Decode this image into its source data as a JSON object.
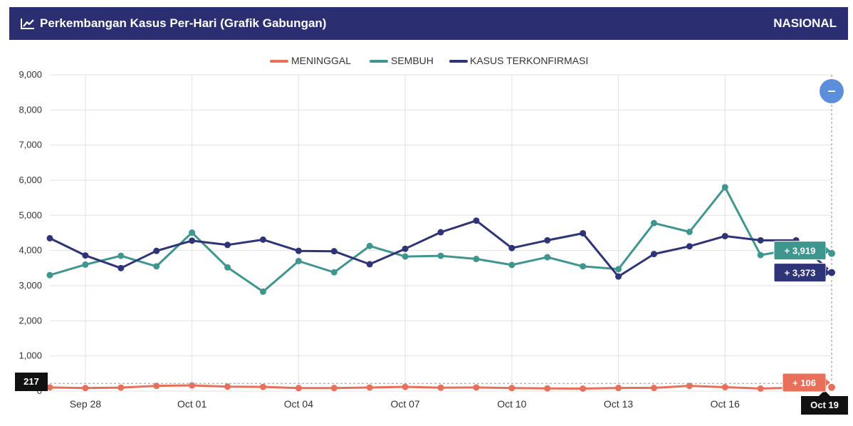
{
  "header": {
    "title": "Perkembangan Kasus Per-Hari (Grafik Gabungan)",
    "scope": "NASIONAL",
    "icon": "line-chart-icon"
  },
  "zoom_button": {
    "icon": "minus-icon",
    "label": "–"
  },
  "colors": {
    "header_bg": "#2b2f72",
    "meninggal": "#e8705a",
    "sembuh": "#3f968f",
    "terkonfirmasi": "#2f3479",
    "zoom": "#5b8fdc"
  },
  "crosshair": {
    "y_label": "217",
    "x_label": "Oct 19"
  },
  "value_tags": {
    "sembuh": "+ 3,919",
    "terkonfirmasi": "+ 3,373",
    "meninggal": "+ 106"
  },
  "chart_data": {
    "type": "line",
    "title": "Perkembangan Kasus Per-Hari (Grafik Gabungan)",
    "xlabel": "",
    "ylabel": "",
    "ylim": [
      0,
      9000
    ],
    "yticks": [
      "0",
      "1,000",
      "2,000",
      "3,000",
      "4,000",
      "5,000",
      "6,000",
      "7,000",
      "8,000",
      "9,000"
    ],
    "grid": true,
    "legend_position": "top-center",
    "x": [
      "Sep 27",
      "Sep 28",
      "Sep 29",
      "Sep 30",
      "Oct 01",
      "Oct 02",
      "Oct 03",
      "Oct 04",
      "Oct 05",
      "Oct 06",
      "Oct 07",
      "Oct 08",
      "Oct 09",
      "Oct 10",
      "Oct 11",
      "Oct 12",
      "Oct 13",
      "Oct 14",
      "Oct 15",
      "Oct 16",
      "Oct 17",
      "Oct 18",
      "Oct 19"
    ],
    "x_tick_labels": [
      "Sep 28",
      "Oct 01",
      "Oct 04",
      "Oct 07",
      "Oct 10",
      "Oct 13",
      "Oct 16"
    ],
    "series": [
      {
        "name": "MENINGGAL",
        "values": [
          104,
          87,
          99,
          149,
          162,
          128,
          120,
          85,
          88,
          102,
          121,
          98,
          103,
          88,
          77,
          71,
          90,
          91,
          149,
          111,
          72,
          97,
          106
        ]
      },
      {
        "name": "SEMBUH",
        "values": [
          3300,
          3600,
          3850,
          3550,
          4510,
          3520,
          2830,
          3700,
          3380,
          4130,
          3830,
          3850,
          3760,
          3590,
          3810,
          3550,
          3470,
          4780,
          4530,
          5800,
          3870,
          4050,
          3919
        ]
      },
      {
        "name": "KASUS TERKONFIRMASI",
        "values": [
          4350,
          3860,
          3500,
          3990,
          4280,
          4160,
          4310,
          3990,
          3980,
          3610,
          4050,
          4520,
          4850,
          4070,
          4290,
          4490,
          3260,
          3900,
          4120,
          4410,
          4290,
          4290,
          3373
        ]
      }
    ]
  }
}
